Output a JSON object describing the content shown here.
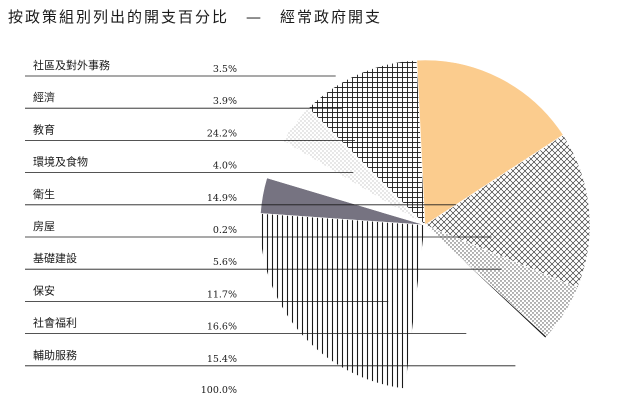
{
  "title": "按政策組別列出的開支百分比　—　經常政府開支",
  "chart_data": {
    "type": "pie",
    "title": "按政策組別列出的開支百分比　—　經常政府開支",
    "legend_placement": "left",
    "categories": [
      "社區及對外事務",
      "經濟",
      "教育",
      "環境及食物",
      "衛生",
      "房屋",
      "基礎建設",
      "保安",
      "社會福利",
      "輔助服務"
    ],
    "values": [
      3.5,
      3.9,
      24.2,
      4.0,
      14.9,
      0.2,
      5.6,
      11.7,
      16.6,
      15.4
    ],
    "value_labels": [
      "3.5%",
      "3.9%",
      "24.2%",
      "4.0%",
      "14.9%",
      "0.2%",
      "5.6%",
      "11.7%",
      "16.6%",
      "15.4%"
    ],
    "total_label": "100.0%",
    "slice_order_clockwise_from_top": [
      "社區及對外事務",
      "經濟",
      "環境及食物",
      "保安",
      "社會福利",
      "輔助服務",
      "基礎建設",
      "房屋",
      "衛生",
      "教育"
    ],
    "fills": {
      "社區及對外事務": "gray-solid",
      "經濟": "white",
      "教育": "vertical-lines",
      "環境及食物": "fine-dots",
      "衛生": "white",
      "房屋": "black-solid",
      "基礎建設": "dots",
      "保安": "grid",
      "社會福利": "orange-solid",
      "輔助服務": "crosshatch"
    },
    "colors": {
      "gray_solid": "#767381",
      "orange_solid": "#fbcc8e",
      "ink": "#1a1a1a"
    }
  }
}
